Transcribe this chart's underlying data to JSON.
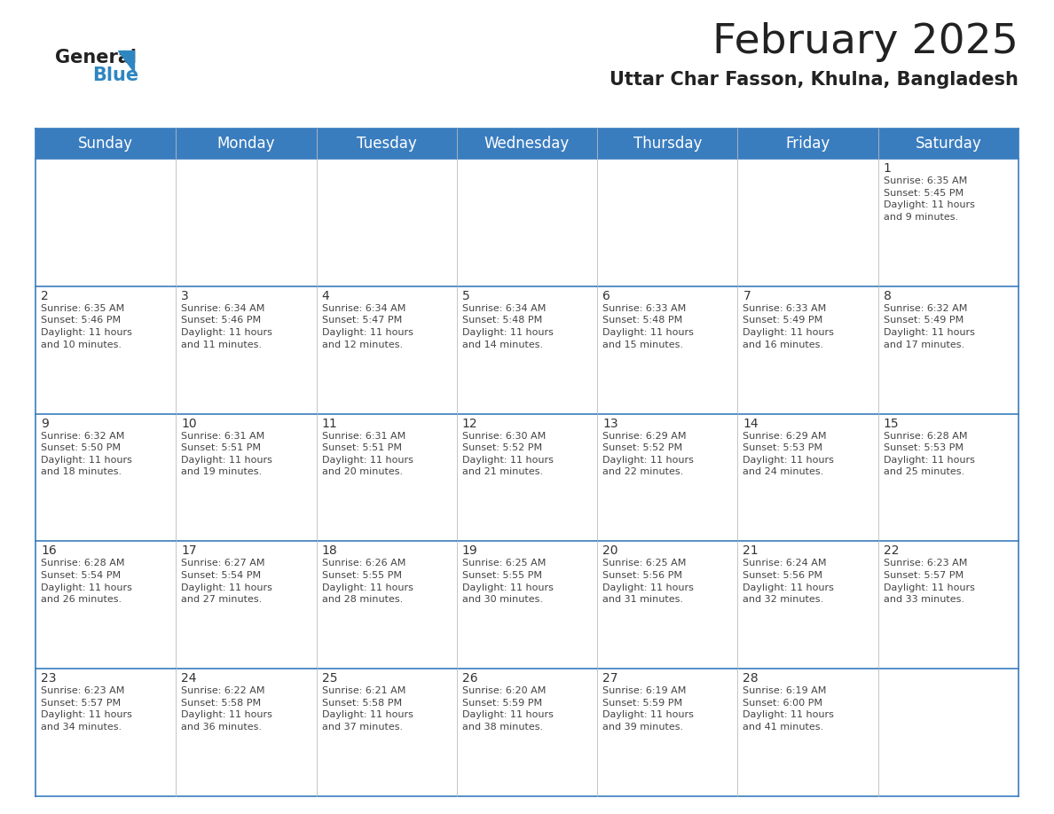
{
  "title": "February 2025",
  "subtitle": "Uttar Char Fasson, Khulna, Bangladesh",
  "header_color": "#3a7dbf",
  "header_text_color": "#FFFFFF",
  "cell_bg_color": "#FFFFFF",
  "row_border_color": "#3a7dbf",
  "col_border_color": "#cccccc",
  "outer_border_color": "#3a7dbf",
  "day_headers": [
    "Sunday",
    "Monday",
    "Tuesday",
    "Wednesday",
    "Thursday",
    "Friday",
    "Saturday"
  ],
  "title_fontsize": 34,
  "subtitle_fontsize": 15,
  "day_header_fontsize": 12,
  "cell_day_fontsize": 10,
  "cell_info_fontsize": 8,
  "calendar": [
    [
      {
        "day": "",
        "info": ""
      },
      {
        "day": "",
        "info": ""
      },
      {
        "day": "",
        "info": ""
      },
      {
        "day": "",
        "info": ""
      },
      {
        "day": "",
        "info": ""
      },
      {
        "day": "",
        "info": ""
      },
      {
        "day": "1",
        "info": "Sunrise: 6:35 AM\nSunset: 5:45 PM\nDaylight: 11 hours\nand 9 minutes."
      }
    ],
    [
      {
        "day": "2",
        "info": "Sunrise: 6:35 AM\nSunset: 5:46 PM\nDaylight: 11 hours\nand 10 minutes."
      },
      {
        "day": "3",
        "info": "Sunrise: 6:34 AM\nSunset: 5:46 PM\nDaylight: 11 hours\nand 11 minutes."
      },
      {
        "day": "4",
        "info": "Sunrise: 6:34 AM\nSunset: 5:47 PM\nDaylight: 11 hours\nand 12 minutes."
      },
      {
        "day": "5",
        "info": "Sunrise: 6:34 AM\nSunset: 5:48 PM\nDaylight: 11 hours\nand 14 minutes."
      },
      {
        "day": "6",
        "info": "Sunrise: 6:33 AM\nSunset: 5:48 PM\nDaylight: 11 hours\nand 15 minutes."
      },
      {
        "day": "7",
        "info": "Sunrise: 6:33 AM\nSunset: 5:49 PM\nDaylight: 11 hours\nand 16 minutes."
      },
      {
        "day": "8",
        "info": "Sunrise: 6:32 AM\nSunset: 5:49 PM\nDaylight: 11 hours\nand 17 minutes."
      }
    ],
    [
      {
        "day": "9",
        "info": "Sunrise: 6:32 AM\nSunset: 5:50 PM\nDaylight: 11 hours\nand 18 minutes."
      },
      {
        "day": "10",
        "info": "Sunrise: 6:31 AM\nSunset: 5:51 PM\nDaylight: 11 hours\nand 19 minutes."
      },
      {
        "day": "11",
        "info": "Sunrise: 6:31 AM\nSunset: 5:51 PM\nDaylight: 11 hours\nand 20 minutes."
      },
      {
        "day": "12",
        "info": "Sunrise: 6:30 AM\nSunset: 5:52 PM\nDaylight: 11 hours\nand 21 minutes."
      },
      {
        "day": "13",
        "info": "Sunrise: 6:29 AM\nSunset: 5:52 PM\nDaylight: 11 hours\nand 22 minutes."
      },
      {
        "day": "14",
        "info": "Sunrise: 6:29 AM\nSunset: 5:53 PM\nDaylight: 11 hours\nand 24 minutes."
      },
      {
        "day": "15",
        "info": "Sunrise: 6:28 AM\nSunset: 5:53 PM\nDaylight: 11 hours\nand 25 minutes."
      }
    ],
    [
      {
        "day": "16",
        "info": "Sunrise: 6:28 AM\nSunset: 5:54 PM\nDaylight: 11 hours\nand 26 minutes."
      },
      {
        "day": "17",
        "info": "Sunrise: 6:27 AM\nSunset: 5:54 PM\nDaylight: 11 hours\nand 27 minutes."
      },
      {
        "day": "18",
        "info": "Sunrise: 6:26 AM\nSunset: 5:55 PM\nDaylight: 11 hours\nand 28 minutes."
      },
      {
        "day": "19",
        "info": "Sunrise: 6:25 AM\nSunset: 5:55 PM\nDaylight: 11 hours\nand 30 minutes."
      },
      {
        "day": "20",
        "info": "Sunrise: 6:25 AM\nSunset: 5:56 PM\nDaylight: 11 hours\nand 31 minutes."
      },
      {
        "day": "21",
        "info": "Sunrise: 6:24 AM\nSunset: 5:56 PM\nDaylight: 11 hours\nand 32 minutes."
      },
      {
        "day": "22",
        "info": "Sunrise: 6:23 AM\nSunset: 5:57 PM\nDaylight: 11 hours\nand 33 minutes."
      }
    ],
    [
      {
        "day": "23",
        "info": "Sunrise: 6:23 AM\nSunset: 5:57 PM\nDaylight: 11 hours\nand 34 minutes."
      },
      {
        "day": "24",
        "info": "Sunrise: 6:22 AM\nSunset: 5:58 PM\nDaylight: 11 hours\nand 36 minutes."
      },
      {
        "day": "25",
        "info": "Sunrise: 6:21 AM\nSunset: 5:58 PM\nDaylight: 11 hours\nand 37 minutes."
      },
      {
        "day": "26",
        "info": "Sunrise: 6:20 AM\nSunset: 5:59 PM\nDaylight: 11 hours\nand 38 minutes."
      },
      {
        "day": "27",
        "info": "Sunrise: 6:19 AM\nSunset: 5:59 PM\nDaylight: 11 hours\nand 39 minutes."
      },
      {
        "day": "28",
        "info": "Sunrise: 6:19 AM\nSunset: 6:00 PM\nDaylight: 11 hours\nand 41 minutes."
      },
      {
        "day": "",
        "info": ""
      }
    ]
  ]
}
